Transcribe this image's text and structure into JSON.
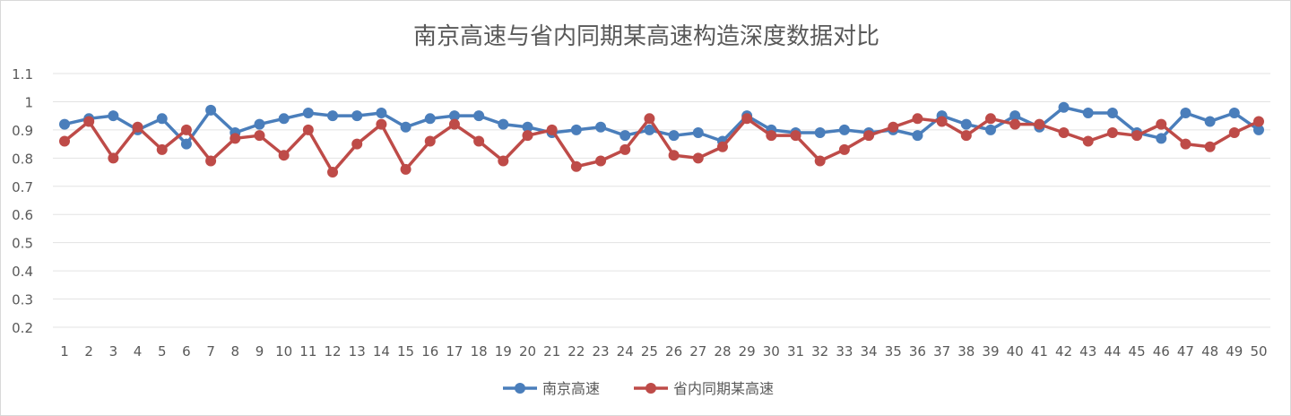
{
  "chart_data": {
    "type": "line",
    "title": "南京高速与省内同期某高速构造深度数据对比",
    "xlabel": "",
    "ylabel": "",
    "x": [
      1,
      2,
      3,
      4,
      5,
      6,
      7,
      8,
      9,
      10,
      11,
      12,
      13,
      14,
      15,
      16,
      17,
      18,
      19,
      20,
      21,
      22,
      23,
      24,
      25,
      26,
      27,
      28,
      29,
      30,
      31,
      32,
      33,
      34,
      35,
      36,
      37,
      38,
      39,
      40,
      41,
      42,
      43,
      44,
      45,
      46,
      47,
      48,
      49,
      50
    ],
    "ylim": [
      0.2,
      1.1
    ],
    "yticks": [
      "0.2",
      "0.3",
      "0.4",
      "0.5",
      "0.6",
      "0.7",
      "0.8",
      "0.9",
      "1",
      "1.1"
    ],
    "grid": true,
    "legend_position": "bottom",
    "series": [
      {
        "name": "南京高速",
        "color": "#4a7ebb",
        "values": [
          0.92,
          0.94,
          0.95,
          0.9,
          0.94,
          0.85,
          0.97,
          0.89,
          0.92,
          0.94,
          0.96,
          0.95,
          0.95,
          0.96,
          0.91,
          0.94,
          0.95,
          0.95,
          0.92,
          0.91,
          0.89,
          0.9,
          0.91,
          0.88,
          0.9,
          0.88,
          0.89,
          0.86,
          0.95,
          0.9,
          0.89,
          0.89,
          0.9,
          0.89,
          0.9,
          0.88,
          0.95,
          0.92,
          0.9,
          0.95,
          0.91,
          0.98,
          0.96,
          0.96,
          0.89,
          0.87,
          0.96,
          0.93,
          0.96,
          0.9
        ]
      },
      {
        "name": "省内同期某高速",
        "color": "#be4b48",
        "values": [
          0.86,
          0.93,
          0.8,
          0.91,
          0.83,
          0.9,
          0.79,
          0.87,
          0.88,
          0.81,
          0.9,
          0.75,
          0.85,
          0.92,
          0.76,
          0.86,
          0.92,
          0.86,
          0.79,
          0.88,
          0.9,
          0.77,
          0.79,
          0.83,
          0.94,
          0.81,
          0.8,
          0.84,
          0.94,
          0.88,
          0.88,
          0.79,
          0.83,
          0.88,
          0.91,
          0.94,
          0.93,
          0.88,
          0.94,
          0.92,
          0.92,
          0.89,
          0.86,
          0.89,
          0.88,
          0.92,
          0.85,
          0.84,
          0.89,
          0.93
        ]
      }
    ]
  }
}
